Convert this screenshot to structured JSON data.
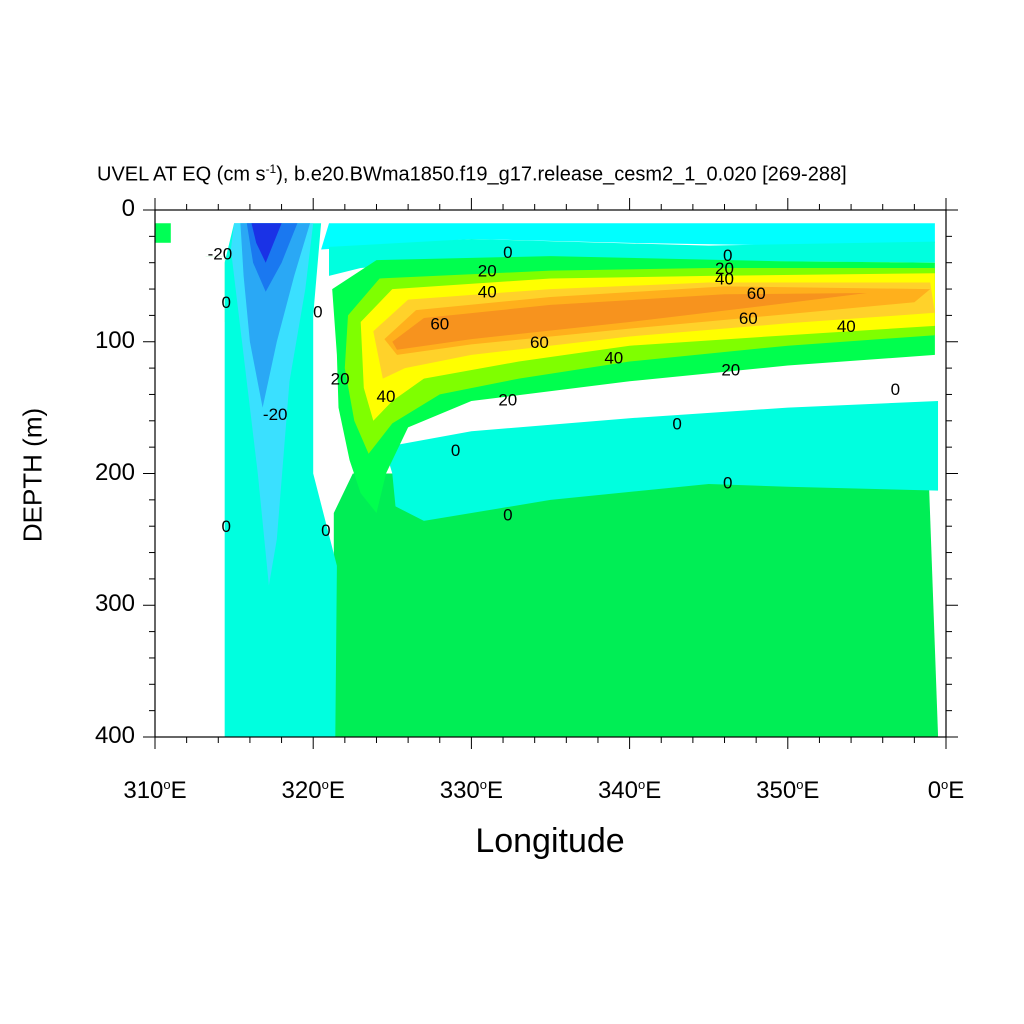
{
  "chart_data": {
    "type": "contour",
    "title_main": "UVEL AT EQ (cm s",
    "title_exp": "-1",
    "title_rest": "), b.e20.BWma1850.f19_g17.release_cesm2_1_0.020 [269-288]",
    "xlabel": "Longitude",
    "ylabel": "DEPTH (m)",
    "x_range_degE": [
      310,
      360
    ],
    "y_range_m": [
      0,
      400
    ],
    "y_reversed": true,
    "x_ticks": [
      "310",
      "320",
      "330",
      "340",
      "350",
      "0"
    ],
    "x_tick_suffix": "E",
    "y_ticks": [
      "0",
      "100",
      "200",
      "300",
      "400"
    ],
    "contour_labels": [
      {
        "text": "-20",
        "lon": 314.1,
        "depth": 33
      },
      {
        "text": "0",
        "lon": 314.5,
        "depth": 70
      },
      {
        "text": "0",
        "lon": 320.3,
        "depth": 77
      },
      {
        "text": "20",
        "lon": 321.7,
        "depth": 128
      },
      {
        "text": "-20",
        "lon": 317.6,
        "depth": 155
      },
      {
        "text": "0",
        "lon": 314.5,
        "depth": 240
      },
      {
        "text": "0",
        "lon": 320.8,
        "depth": 243
      },
      {
        "text": "0",
        "lon": 332.3,
        "depth": 32
      },
      {
        "text": "20",
        "lon": 331.0,
        "depth": 46
      },
      {
        "text": "40",
        "lon": 331.0,
        "depth": 62
      },
      {
        "text": "60",
        "lon": 328.0,
        "depth": 86
      },
      {
        "text": "60",
        "lon": 334.3,
        "depth": 100
      },
      {
        "text": "40",
        "lon": 324.6,
        "depth": 141
      },
      {
        "text": "20",
        "lon": 332.3,
        "depth": 144
      },
      {
        "text": "40",
        "lon": 339.0,
        "depth": 112
      },
      {
        "text": "0",
        "lon": 346.2,
        "depth": 34
      },
      {
        "text": "20",
        "lon": 346.0,
        "depth": 44
      },
      {
        "text": "40",
        "lon": 346.0,
        "depth": 52
      },
      {
        "text": "60",
        "lon": 348.0,
        "depth": 63
      },
      {
        "text": "60",
        "lon": 347.5,
        "depth": 82
      },
      {
        "text": "40",
        "lon": 353.7,
        "depth": 88
      },
      {
        "text": "20",
        "lon": 346.4,
        "depth": 121
      },
      {
        "text": "0",
        "lon": 356.8,
        "depth": 136
      },
      {
        "text": "0",
        "lon": 343.0,
        "depth": 162
      },
      {
        "text": "0",
        "lon": 329.0,
        "depth": 182
      },
      {
        "text": "0",
        "lon": 346.2,
        "depth": 207
      },
      {
        "text": "0",
        "lon": 332.3,
        "depth": 231
      }
    ],
    "contour_levels": [
      -40,
      -30,
      -20,
      -10,
      0,
      10,
      20,
      30,
      40,
      50,
      60
    ],
    "fill_colors": {
      "lt_-40": "#1a32e6",
      "-40_-30": "#1a78f0",
      "-30_-20": "#2aa8f5",
      "-20_-10": "#3ae0ff",
      "-10_0": "#00ffdf",
      "0_10": "#00f0b0",
      "10_20": "#00ff4e",
      "20_30": "#7fff00",
      "30_40": "#ffff00",
      "40_50": "#ffd22a",
      "50_60": "#ffb01c",
      "gt_60": "#f7931e",
      "surface": "#00ffff",
      "deep": "#00ee55",
      "green": "#00ff55",
      "mid": "#00ffd0"
    }
  }
}
